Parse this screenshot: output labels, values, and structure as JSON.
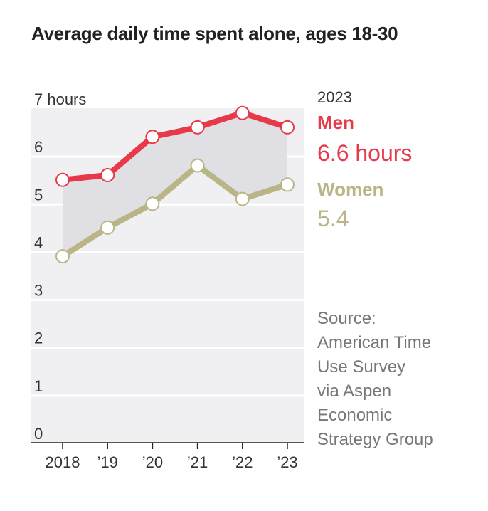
{
  "chart_data": {
    "type": "line",
    "title": "Average daily time spent alone, ages 18-30",
    "x_ticks": [
      "2018",
      "’19",
      "’20",
      "’21",
      "’22",
      "’23"
    ],
    "y_ticks": [
      "0",
      "1",
      "2",
      "3",
      "4",
      "5",
      "6",
      "7 hours"
    ],
    "ylim": [
      0,
      7
    ],
    "grid": true,
    "series": [
      {
        "name": "Men",
        "color": "#e8394a",
        "values": [
          5.5,
          5.6,
          6.4,
          6.6,
          6.9,
          6.6
        ]
      },
      {
        "name": "Women",
        "color": "#b9b587",
        "values": [
          3.9,
          4.5,
          5.0,
          5.8,
          5.1,
          5.4
        ]
      }
    ],
    "annotation": {
      "year": "2023",
      "men_label": "Men",
      "men_value": "6.6 hours",
      "women_label": "Women",
      "women_value": "5.4"
    },
    "source_lines": [
      "Source:",
      "American Time",
      "Use Survey",
      "via Aspen",
      "Economic",
      "Strategy Group"
    ]
  }
}
